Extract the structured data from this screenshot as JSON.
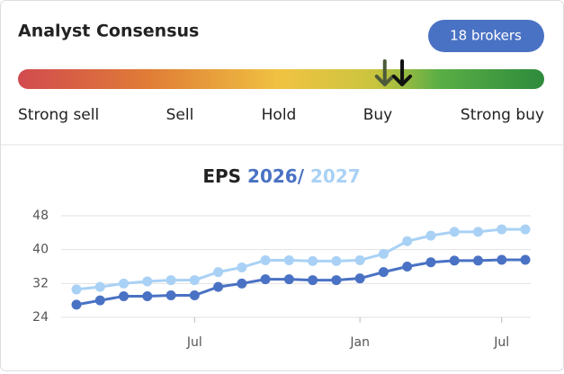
{
  "header": {
    "title": "Analyst Consensus",
    "badge": "18 brokers"
  },
  "gauge": {
    "labels": [
      "Strong sell",
      "Sell",
      "Hold",
      "Buy",
      "Strong buy"
    ],
    "markers": [
      0.697,
      0.73
    ],
    "marker_colors": [
      "#4d5a3a",
      "#111111"
    ]
  },
  "chart_data": {
    "type": "line",
    "title": "EPS",
    "separator": "/",
    "categories": [
      null,
      null,
      null,
      null,
      null,
      "Jul",
      null,
      null,
      null,
      null,
      null,
      null,
      "Jan",
      null,
      null,
      null,
      null,
      null,
      "Jul",
      null
    ],
    "series": [
      {
        "name": "2026",
        "color": "#4a72c4",
        "values": [
          27,
          28,
          29,
          29,
          29.2,
          29.2,
          31.2,
          32,
          33,
          33,
          32.8,
          32.8,
          33.2,
          34.7,
          36,
          37,
          37.4,
          37.4,
          37.6,
          37.6
        ]
      },
      {
        "name": "2027",
        "color": "#a9d1f5",
        "values": [
          30.6,
          31.2,
          32,
          32.5,
          32.8,
          32.8,
          34.7,
          35.8,
          37.5,
          37.5,
          37.3,
          37.3,
          37.5,
          39,
          42,
          43.3,
          44.2,
          44.2,
          44.8,
          44.8
        ]
      }
    ],
    "ylim": [
      24,
      48
    ],
    "yticks": [
      24,
      32,
      40,
      48
    ],
    "grid": true
  }
}
